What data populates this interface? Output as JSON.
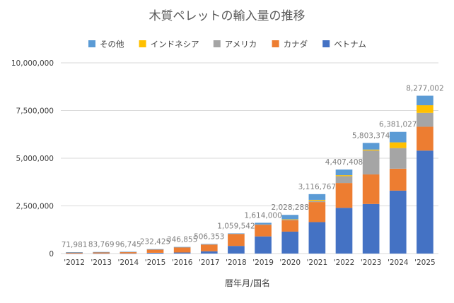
{
  "chart_data": {
    "type": "bar",
    "stacked": true,
    "title": "木質ペレットの輸入量の推移",
    "xlabel": "暦年月/国名",
    "ylabel": "",
    "ylim": [
      0,
      10000000
    ],
    "yticks": [
      "0",
      "2,500,000",
      "5,000,000",
      "7,500,000",
      "10,000,000"
    ],
    "grid": true,
    "legend_position": "top",
    "categories": [
      "'2012",
      "'2013",
      "'2014",
      "'2015",
      "'2016",
      "'2017",
      "'2018",
      "'2019",
      "'2020",
      "'2021",
      "'2022",
      "'2023",
      "'2024",
      "'2025"
    ],
    "totals_labels": [
      "71,981",
      "83,769",
      "96,745",
      "232,425",
      "346,855",
      "506,353",
      "1,059,542",
      "1,614,000",
      "2,028,288",
      "3,116,767",
      "4,407,408",
      "5,803,374",
      "6,381,027",
      "8,277,002"
    ],
    "series": [
      {
        "name": "ベトナム",
        "color": "#4472C4",
        "values": [
          5000,
          6000,
          7000,
          40000,
          55000,
          120000,
          400000,
          900000,
          1150000,
          1650000,
          2400000,
          2600000,
          3300000,
          5400000
        ]
      },
      {
        "name": "カナダ",
        "color": "#ED7D31",
        "values": [
          50000,
          60000,
          70000,
          170000,
          270000,
          350000,
          620000,
          600000,
          600000,
          1050000,
          1300000,
          1550000,
          1150000,
          1250000
        ]
      },
      {
        "name": "アメリカ",
        "color": "#A5A5A5",
        "values": [
          6981,
          7769,
          9745,
          12425,
          11855,
          16353,
          19542,
          34000,
          28288,
          66767,
          357408,
          1253374,
          1081027,
          727002
        ]
      },
      {
        "name": "インドネシア",
        "color": "#FFC000",
        "values": [
          0,
          0,
          0,
          0,
          0,
          0,
          0,
          0,
          20000,
          50000,
          50000,
          50000,
          300000,
          400000
        ]
      },
      {
        "name": "その他",
        "color": "#5B9BD5",
        "values": [
          10000,
          10000,
          10000,
          10000,
          10000,
          20000,
          20000,
          80000,
          230000,
          300000,
          300000,
          350000,
          550000,
          500000
        ]
      }
    ],
    "legend_order": [
      "その他",
      "インドネシア",
      "アメリカ",
      "カナダ",
      "ベトナム"
    ]
  },
  "colors": {
    "title": "#595959",
    "axis_text": "#404040",
    "label_text": "#7F7F7F",
    "grid": "#D9D9D9"
  }
}
